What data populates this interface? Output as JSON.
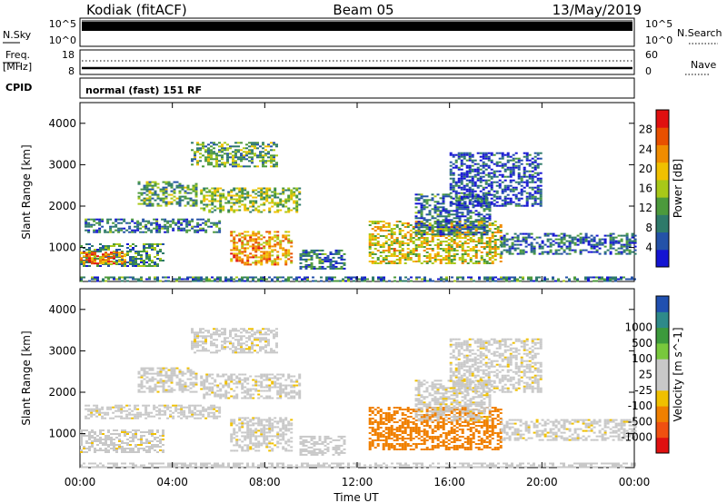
{
  "header": {
    "station": "Kodiak (fitACF)",
    "beam": "Beam 05",
    "date": "13/May/2019",
    "mode": "normal (fast) 151 RF"
  },
  "sky_panel": {
    "left_label": "N.Sky",
    "left_ticks": [
      "10^5",
      "10^0"
    ],
    "right_ticks": [
      "10^5",
      "10^0"
    ],
    "right_label": "N.Search"
  },
  "freq_panel": {
    "left_label_1": "Freq.",
    "left_label_2": "[MHz]",
    "left_ticks": [
      "18",
      "8"
    ],
    "right_ticks": [
      "60",
      "0"
    ],
    "right_label": "Nave",
    "cpid_label": "CPID"
  },
  "x_axis": {
    "label": "Time UT",
    "ticks": [
      "00:00",
      "04:00",
      "08:00",
      "12:00",
      "16:00",
      "20:00",
      "00:00"
    ]
  },
  "colors": {
    "power": [
      "#1414d2",
      "#2452a8",
      "#2e7a6a",
      "#4c9a3c",
      "#a8c818",
      "#f0c000",
      "#f08c00",
      "#e85000",
      "#e01010"
    ],
    "velocity": [
      "#e01010",
      "#f05010",
      "#f08000",
      "#f0c000",
      "#c8c8c8",
      "#c8c8c8",
      "#78c83c",
      "#3c9a3c",
      "#2e8a8a",
      "#2050b0"
    ]
  },
  "chart_data": [
    {
      "type": "heatmap",
      "title": "",
      "xlabel": "Time UT",
      "ylabel": "Slant Range [km]",
      "xlim": [
        "00:00",
        "24:00"
      ],
      "ylim": [
        180,
        4500
      ],
      "yticks": [
        1000,
        2000,
        3000,
        4000
      ],
      "colorbar": {
        "label": "Power [dB]",
        "range": [
          0,
          32
        ],
        "ticks": [
          4,
          8,
          12,
          16,
          20,
          24,
          28
        ]
      },
      "regions": [
        {
          "t_start": 0.0,
          "t_end": 3.6,
          "r_low": 550,
          "r_high": 1100,
          "value": 10
        },
        {
          "t_start": 0.0,
          "t_end": 2.0,
          "r_low": 600,
          "r_high": 900,
          "value": 24
        },
        {
          "t_start": 0.2,
          "t_end": 6.0,
          "r_low": 1350,
          "r_high": 1700,
          "value": 8
        },
        {
          "t_start": 2.5,
          "t_end": 5.0,
          "r_low": 2000,
          "r_high": 2600,
          "value": 12
        },
        {
          "t_start": 5.2,
          "t_end": 9.5,
          "r_low": 1850,
          "r_high": 2450,
          "value": 14
        },
        {
          "t_start": 4.8,
          "t_end": 8.5,
          "r_low": 2950,
          "r_high": 3550,
          "value": 12
        },
        {
          "t_start": 6.5,
          "t_end": 9.2,
          "r_low": 600,
          "r_high": 1400,
          "value": 22
        },
        {
          "t_start": 9.5,
          "t_end": 11.5,
          "r_low": 500,
          "r_high": 950,
          "value": 8
        },
        {
          "t_start": 12.5,
          "t_end": 18.2,
          "r_low": 600,
          "r_high": 1650,
          "value": 18
        },
        {
          "t_start": 14.5,
          "t_end": 17.8,
          "r_low": 1300,
          "r_high": 2300,
          "value": 8
        },
        {
          "t_start": 18.2,
          "t_end": 24.0,
          "r_low": 850,
          "r_high": 1350,
          "value": 7
        },
        {
          "t_start": 16.0,
          "t_end": 20.0,
          "r_low": 2000,
          "r_high": 3300,
          "value": 5
        },
        {
          "t_start": 0.0,
          "t_end": 24.0,
          "r_low": 180,
          "r_high": 300,
          "value": 8
        }
      ]
    },
    {
      "type": "heatmap",
      "title": "",
      "xlabel": "Time UT",
      "ylabel": "Slant Range [km]",
      "xlim": [
        "00:00",
        "24:00"
      ],
      "ylim": [
        180,
        4500
      ],
      "yticks": [
        1000,
        2000,
        3000,
        4000
      ],
      "colorbar": {
        "label": "Velocity [m s^-1]",
        "ticks": [
          -1000,
          -500,
          -100,
          -25,
          25,
          100,
          500,
          1000
        ]
      },
      "regions": [
        {
          "t_start": 0.0,
          "t_end": 3.6,
          "r_low": 550,
          "r_high": 1100,
          "value": 0
        },
        {
          "t_start": 0.2,
          "t_end": 6.0,
          "r_low": 1350,
          "r_high": 1700,
          "value": 0
        },
        {
          "t_start": 2.5,
          "t_end": 5.0,
          "r_low": 2000,
          "r_high": 2600,
          "value": 0
        },
        {
          "t_start": 5.2,
          "t_end": 9.5,
          "r_low": 1850,
          "r_high": 2450,
          "value": 0
        },
        {
          "t_start": 4.8,
          "t_end": 8.5,
          "r_low": 2950,
          "r_high": 3550,
          "value": 0
        },
        {
          "t_start": 6.5,
          "t_end": 9.2,
          "r_low": 600,
          "r_high": 1400,
          "value": 0
        },
        {
          "t_start": 9.5,
          "t_end": 11.5,
          "r_low": 500,
          "r_high": 950,
          "value": 50
        },
        {
          "t_start": 12.5,
          "t_end": 18.2,
          "r_low": 600,
          "r_high": 1650,
          "value": -250
        },
        {
          "t_start": 14.5,
          "t_end": 17.8,
          "r_low": 1300,
          "r_high": 2300,
          "value": 0
        },
        {
          "t_start": 18.2,
          "t_end": 24.0,
          "r_low": 850,
          "r_high": 1350,
          "value": 0
        },
        {
          "t_start": 16.0,
          "t_end": 20.0,
          "r_low": 2000,
          "r_high": 3300,
          "value": 0
        },
        {
          "t_start": 0.0,
          "t_end": 24.0,
          "r_low": 180,
          "r_high": 300,
          "value": 50
        }
      ]
    }
  ]
}
